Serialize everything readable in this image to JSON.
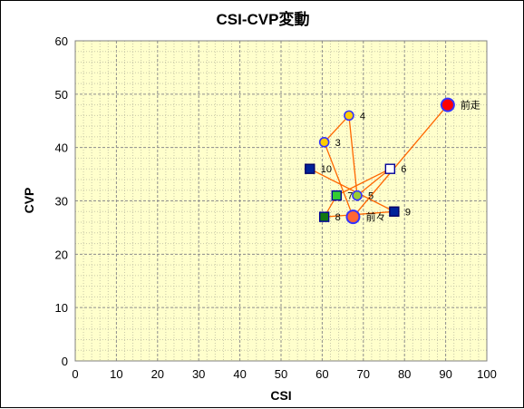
{
  "chart_data": {
    "type": "scatter",
    "title": "CSI-CVP変動",
    "xlabel": "CSI",
    "ylabel": "CVP",
    "xlim": [
      0,
      100
    ],
    "ylim": [
      0,
      60
    ],
    "xticks": [
      0,
      10,
      20,
      30,
      40,
      50,
      60,
      70,
      80,
      90,
      100
    ],
    "yticks": [
      0,
      10,
      20,
      30,
      40,
      50,
      60
    ],
    "grid": true,
    "legend": "none",
    "colors": {
      "plot_bg": "#ffffcc",
      "grid": "#999999",
      "line": "#ff6600"
    },
    "path_order": [
      "前走",
      "前々",
      "3",
      "4",
      "5",
      "6",
      "7",
      "8",
      "9",
      "10"
    ],
    "points": [
      {
        "label": "前走",
        "x": 90.5,
        "y": 48,
        "shape": "circle-large",
        "fill": "#ff0000",
        "stroke": "#3333ff"
      },
      {
        "label": "前々",
        "x": 67.5,
        "y": 27,
        "shape": "circle-large",
        "fill": "#ff6633",
        "stroke": "#3333ff"
      },
      {
        "label": "3",
        "x": 60.5,
        "y": 41,
        "shape": "circle",
        "fill": "#ffcc00",
        "stroke": "#3333ff"
      },
      {
        "label": "4",
        "x": 66.5,
        "y": 46,
        "shape": "circle",
        "fill": "#ffcc00",
        "stroke": "#3333ff"
      },
      {
        "label": "5",
        "x": 68.5,
        "y": 31,
        "shape": "circle",
        "fill": "#99cc33",
        "stroke": "#3333ff"
      },
      {
        "label": "6",
        "x": 76.5,
        "y": 36,
        "shape": "square",
        "fill": "#ffffff",
        "stroke": "#000099"
      },
      {
        "label": "7",
        "x": 63.5,
        "y": 31,
        "shape": "square",
        "fill": "#33cc33",
        "stroke": "#000099"
      },
      {
        "label": "8",
        "x": 60.5,
        "y": 27,
        "shape": "square",
        "fill": "#117711",
        "stroke": "#000099"
      },
      {
        "label": "9",
        "x": 77.5,
        "y": 28,
        "shape": "square",
        "fill": "#002299",
        "stroke": "#000066"
      },
      {
        "label": "10",
        "x": 57,
        "y": 36,
        "shape": "square",
        "fill": "#002299",
        "stroke": "#000066"
      }
    ]
  }
}
